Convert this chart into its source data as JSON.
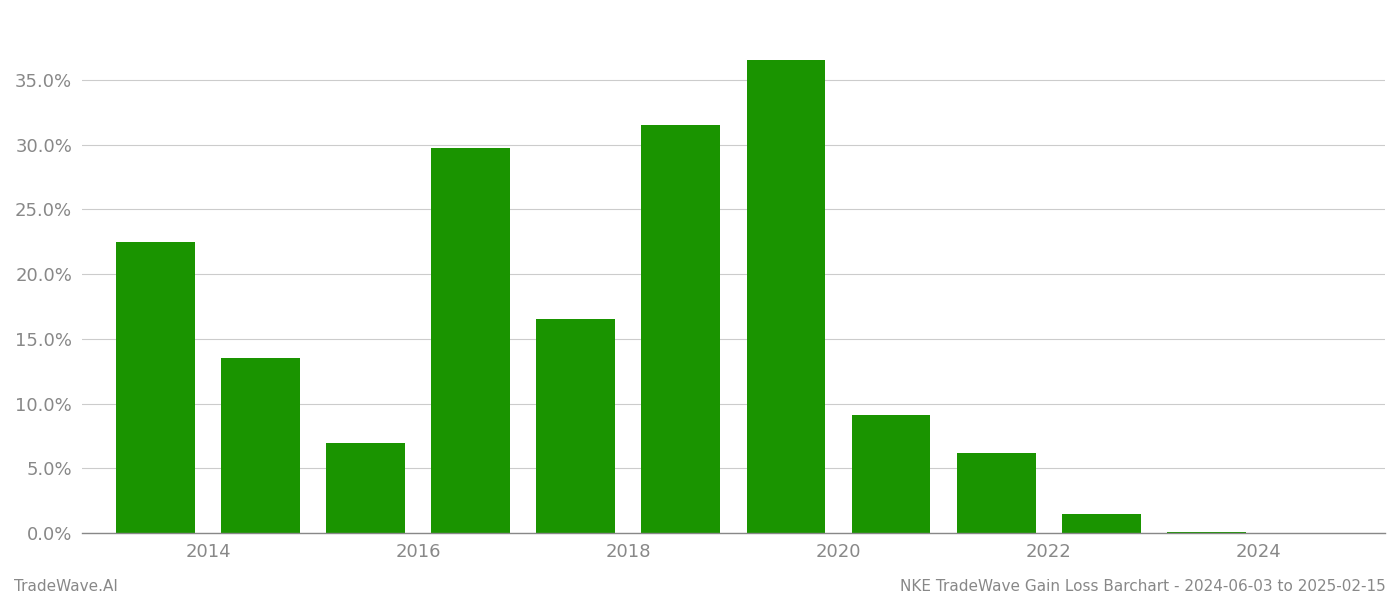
{
  "years": [
    2013.5,
    2014.5,
    2015.5,
    2016.5,
    2017.5,
    2018.5,
    2019.5,
    2020.5,
    2021.5,
    2022.5,
    2023.5
  ],
  "values": [
    0.225,
    0.135,
    0.07,
    0.297,
    0.165,
    0.315,
    0.365,
    0.091,
    0.062,
    0.015,
    0.001
  ],
  "bar_color": "#1a9400",
  "background_color": "#ffffff",
  "grid_color": "#cccccc",
  "axis_color": "#888888",
  "footer_left": "TradeWave.AI",
  "footer_right": "NKE TradeWave Gain Loss Barchart - 2024-06-03 to 2025-02-15",
  "ylim": [
    0,
    0.4
  ],
  "yticks": [
    0.0,
    0.05,
    0.1,
    0.15,
    0.2,
    0.25,
    0.3,
    0.35
  ],
  "xticks": [
    2014,
    2016,
    2018,
    2020,
    2022,
    2024
  ],
  "xlim": [
    2012.8,
    2025.2
  ],
  "bar_width": 0.75,
  "tick_label_color": "#888888",
  "footer_fontsize": 11,
  "tick_fontsize": 13
}
